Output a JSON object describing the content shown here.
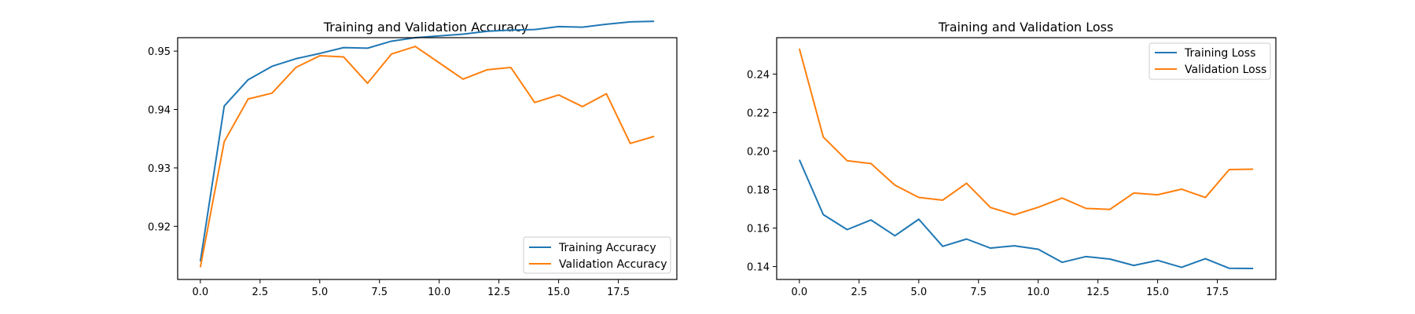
{
  "figure": {
    "background": "#ffffff"
  },
  "chart_data": [
    {
      "type": "line",
      "title": "Training and Validation Accuracy",
      "xlabel": "",
      "ylabel": "",
      "xlim": [
        -0.95,
        19.95
      ],
      "ylim": [
        0.9109,
        0.9523
      ],
      "xticks": [
        0.0,
        2.5,
        5.0,
        7.5,
        10.0,
        12.5,
        15.0,
        17.5
      ],
      "xtick_labels": [
        "0.0",
        "2.5",
        "5.0",
        "7.5",
        "10.0",
        "12.5",
        "15.0",
        "17.5"
      ],
      "yticks": [
        0.92,
        0.93,
        0.94,
        0.95
      ],
      "ytick_labels": [
        "0.92",
        "0.93",
        "0.94",
        "0.95"
      ],
      "grid": false,
      "legend_position": "lower-right",
      "x": [
        0,
        1,
        2,
        3,
        4,
        5,
        6,
        7,
        8,
        9,
        10,
        11,
        12,
        13,
        14,
        15,
        16,
        17,
        18,
        19
      ],
      "series": [
        {
          "name": "Training Accuracy",
          "color": "#1f77b4",
          "values": [
            0.914,
            0.9406,
            0.9451,
            0.9474,
            0.9487,
            0.9496,
            0.9506,
            0.9505,
            0.9517,
            0.9523,
            0.9526,
            0.9529,
            0.9534,
            0.9536,
            0.9537,
            0.9542,
            0.9541,
            0.9546,
            0.955,
            0.9551
          ]
        },
        {
          "name": "Validation Accuracy",
          "color": "#ff7f0e",
          "values": [
            0.913,
            0.9345,
            0.9418,
            0.9428,
            0.9472,
            0.9492,
            0.949,
            0.9445,
            0.9495,
            0.9508,
            0.948,
            0.9452,
            0.9468,
            0.9472,
            0.9412,
            0.9425,
            0.9405,
            0.9427,
            0.9342,
            0.9354
          ]
        }
      ]
    },
    {
      "type": "line",
      "title": "Training and Validation Loss",
      "xlabel": "",
      "ylabel": "",
      "xlim": [
        -0.95,
        19.95
      ],
      "ylim": [
        0.1333,
        0.2589
      ],
      "xticks": [
        0.0,
        2.5,
        5.0,
        7.5,
        10.0,
        12.5,
        15.0,
        17.5
      ],
      "xtick_labels": [
        "0.0",
        "2.5",
        "5.0",
        "7.5",
        "10.0",
        "12.5",
        "15.0",
        "17.5"
      ],
      "yticks": [
        0.14,
        0.16,
        0.18,
        0.2,
        0.22,
        0.24
      ],
      "ytick_labels": [
        "0.14",
        "0.16",
        "0.18",
        "0.20",
        "0.22",
        "0.24"
      ],
      "grid": false,
      "legend_position": "upper-right",
      "x": [
        0,
        1,
        2,
        3,
        4,
        5,
        6,
        7,
        8,
        9,
        10,
        11,
        12,
        13,
        14,
        15,
        16,
        17,
        18,
        19
      ],
      "series": [
        {
          "name": "Training Loss",
          "color": "#1f77b4",
          "values": [
            0.1955,
            0.167,
            0.1592,
            0.1642,
            0.156,
            0.1646,
            0.1505,
            0.1543,
            0.1496,
            0.1508,
            0.149,
            0.1422,
            0.1452,
            0.1439,
            0.1406,
            0.1432,
            0.1396,
            0.1441,
            0.1391,
            0.139
          ]
        },
        {
          "name": "Validation Loss",
          "color": "#ff7f0e",
          "values": [
            0.2532,
            0.2073,
            0.195,
            0.1935,
            0.1823,
            0.1759,
            0.1745,
            0.1833,
            0.1707,
            0.1669,
            0.1708,
            0.1756,
            0.1702,
            0.1697,
            0.1782,
            0.1773,
            0.1802,
            0.1759,
            0.1904,
            0.1906
          ]
        }
      ]
    }
  ]
}
